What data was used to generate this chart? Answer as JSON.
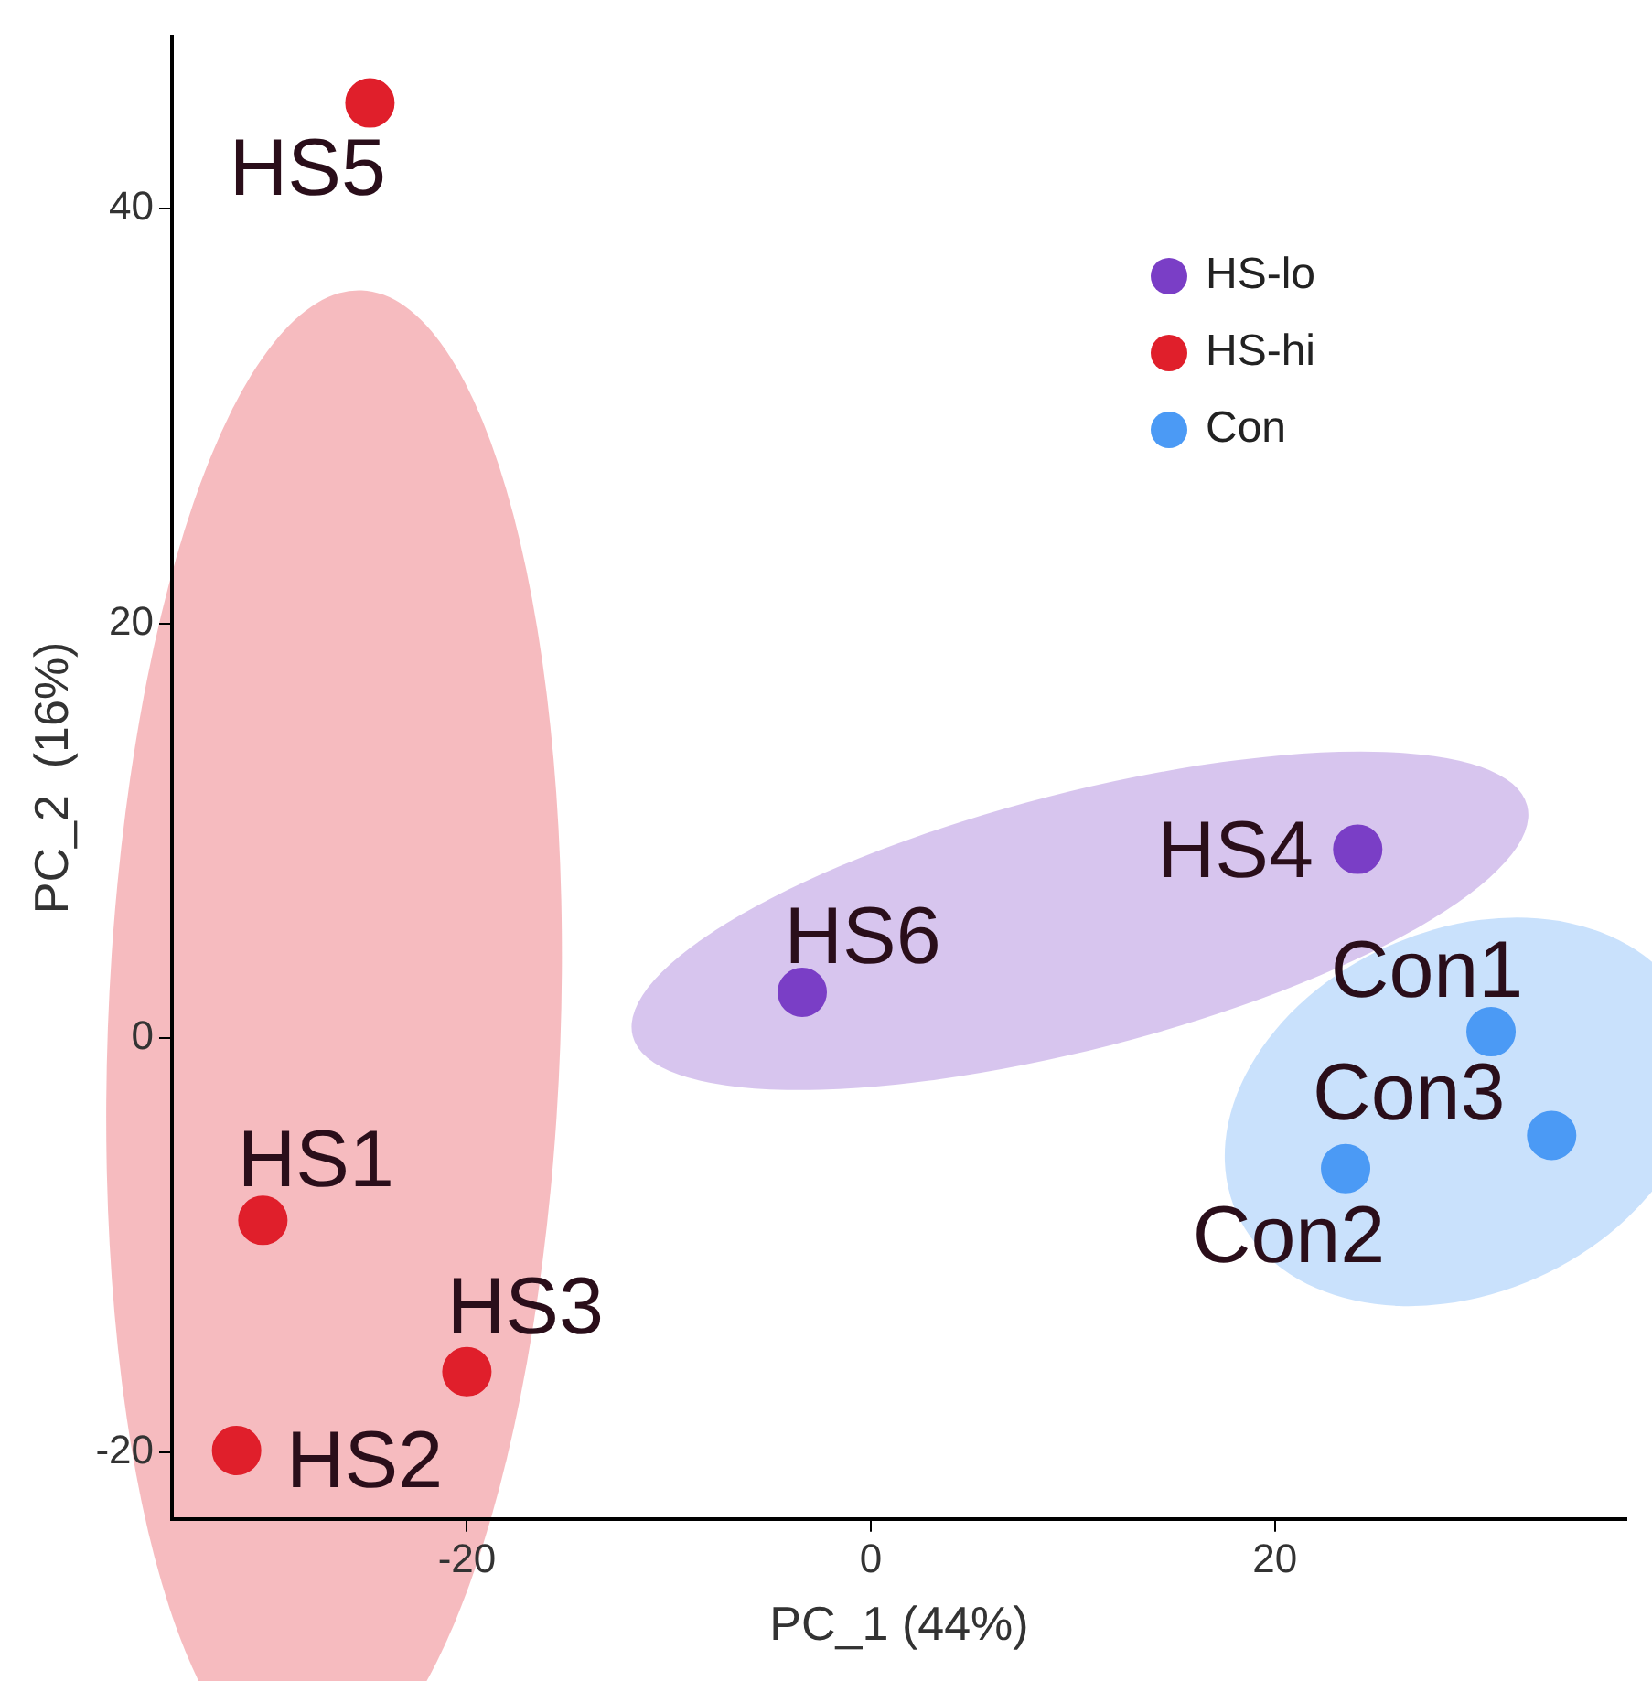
{
  "chart_data": {
    "type": "scatter",
    "xlabel": "PC_1 (44%)",
    "ylabel": "PC_2  (16%)",
    "xlim": [
      -34.6,
      37.4
    ],
    "xticks": [
      -20,
      0,
      20
    ],
    "ylim": [
      -23.2,
      48.3
    ],
    "yticks": [
      -20,
      0,
      20,
      40
    ],
    "grid": false,
    "legend": "top right",
    "marker": "circle",
    "series": [
      {
        "name": "HS-lo",
        "color": "#7a3ec6",
        "x": [
          -3.4,
          24.1
        ],
        "values": [
          2.2,
          9.1
        ],
        "value_labels": [
          "HS6",
          "HS4"
        ]
      },
      {
        "name": "HS-hi",
        "color": "#e01f2b",
        "x": [
          -24.8,
          -30.1,
          -20.0,
          -31.4
        ],
        "values": [
          45.1,
          -8.8,
          -16.1,
          -19.9
        ],
        "value_labels": [
          "HS5",
          "HS1",
          "HS3",
          "HS2"
        ]
      },
      {
        "name": "Con",
        "color": "#4b9af5",
        "x": [
          30.7,
          33.7,
          23.5
        ],
        "values": [
          0.3,
          -4.7,
          -6.3
        ],
        "value_labels": [
          "Con1",
          "Con3",
          "Con2"
        ]
      }
    ]
  }
}
